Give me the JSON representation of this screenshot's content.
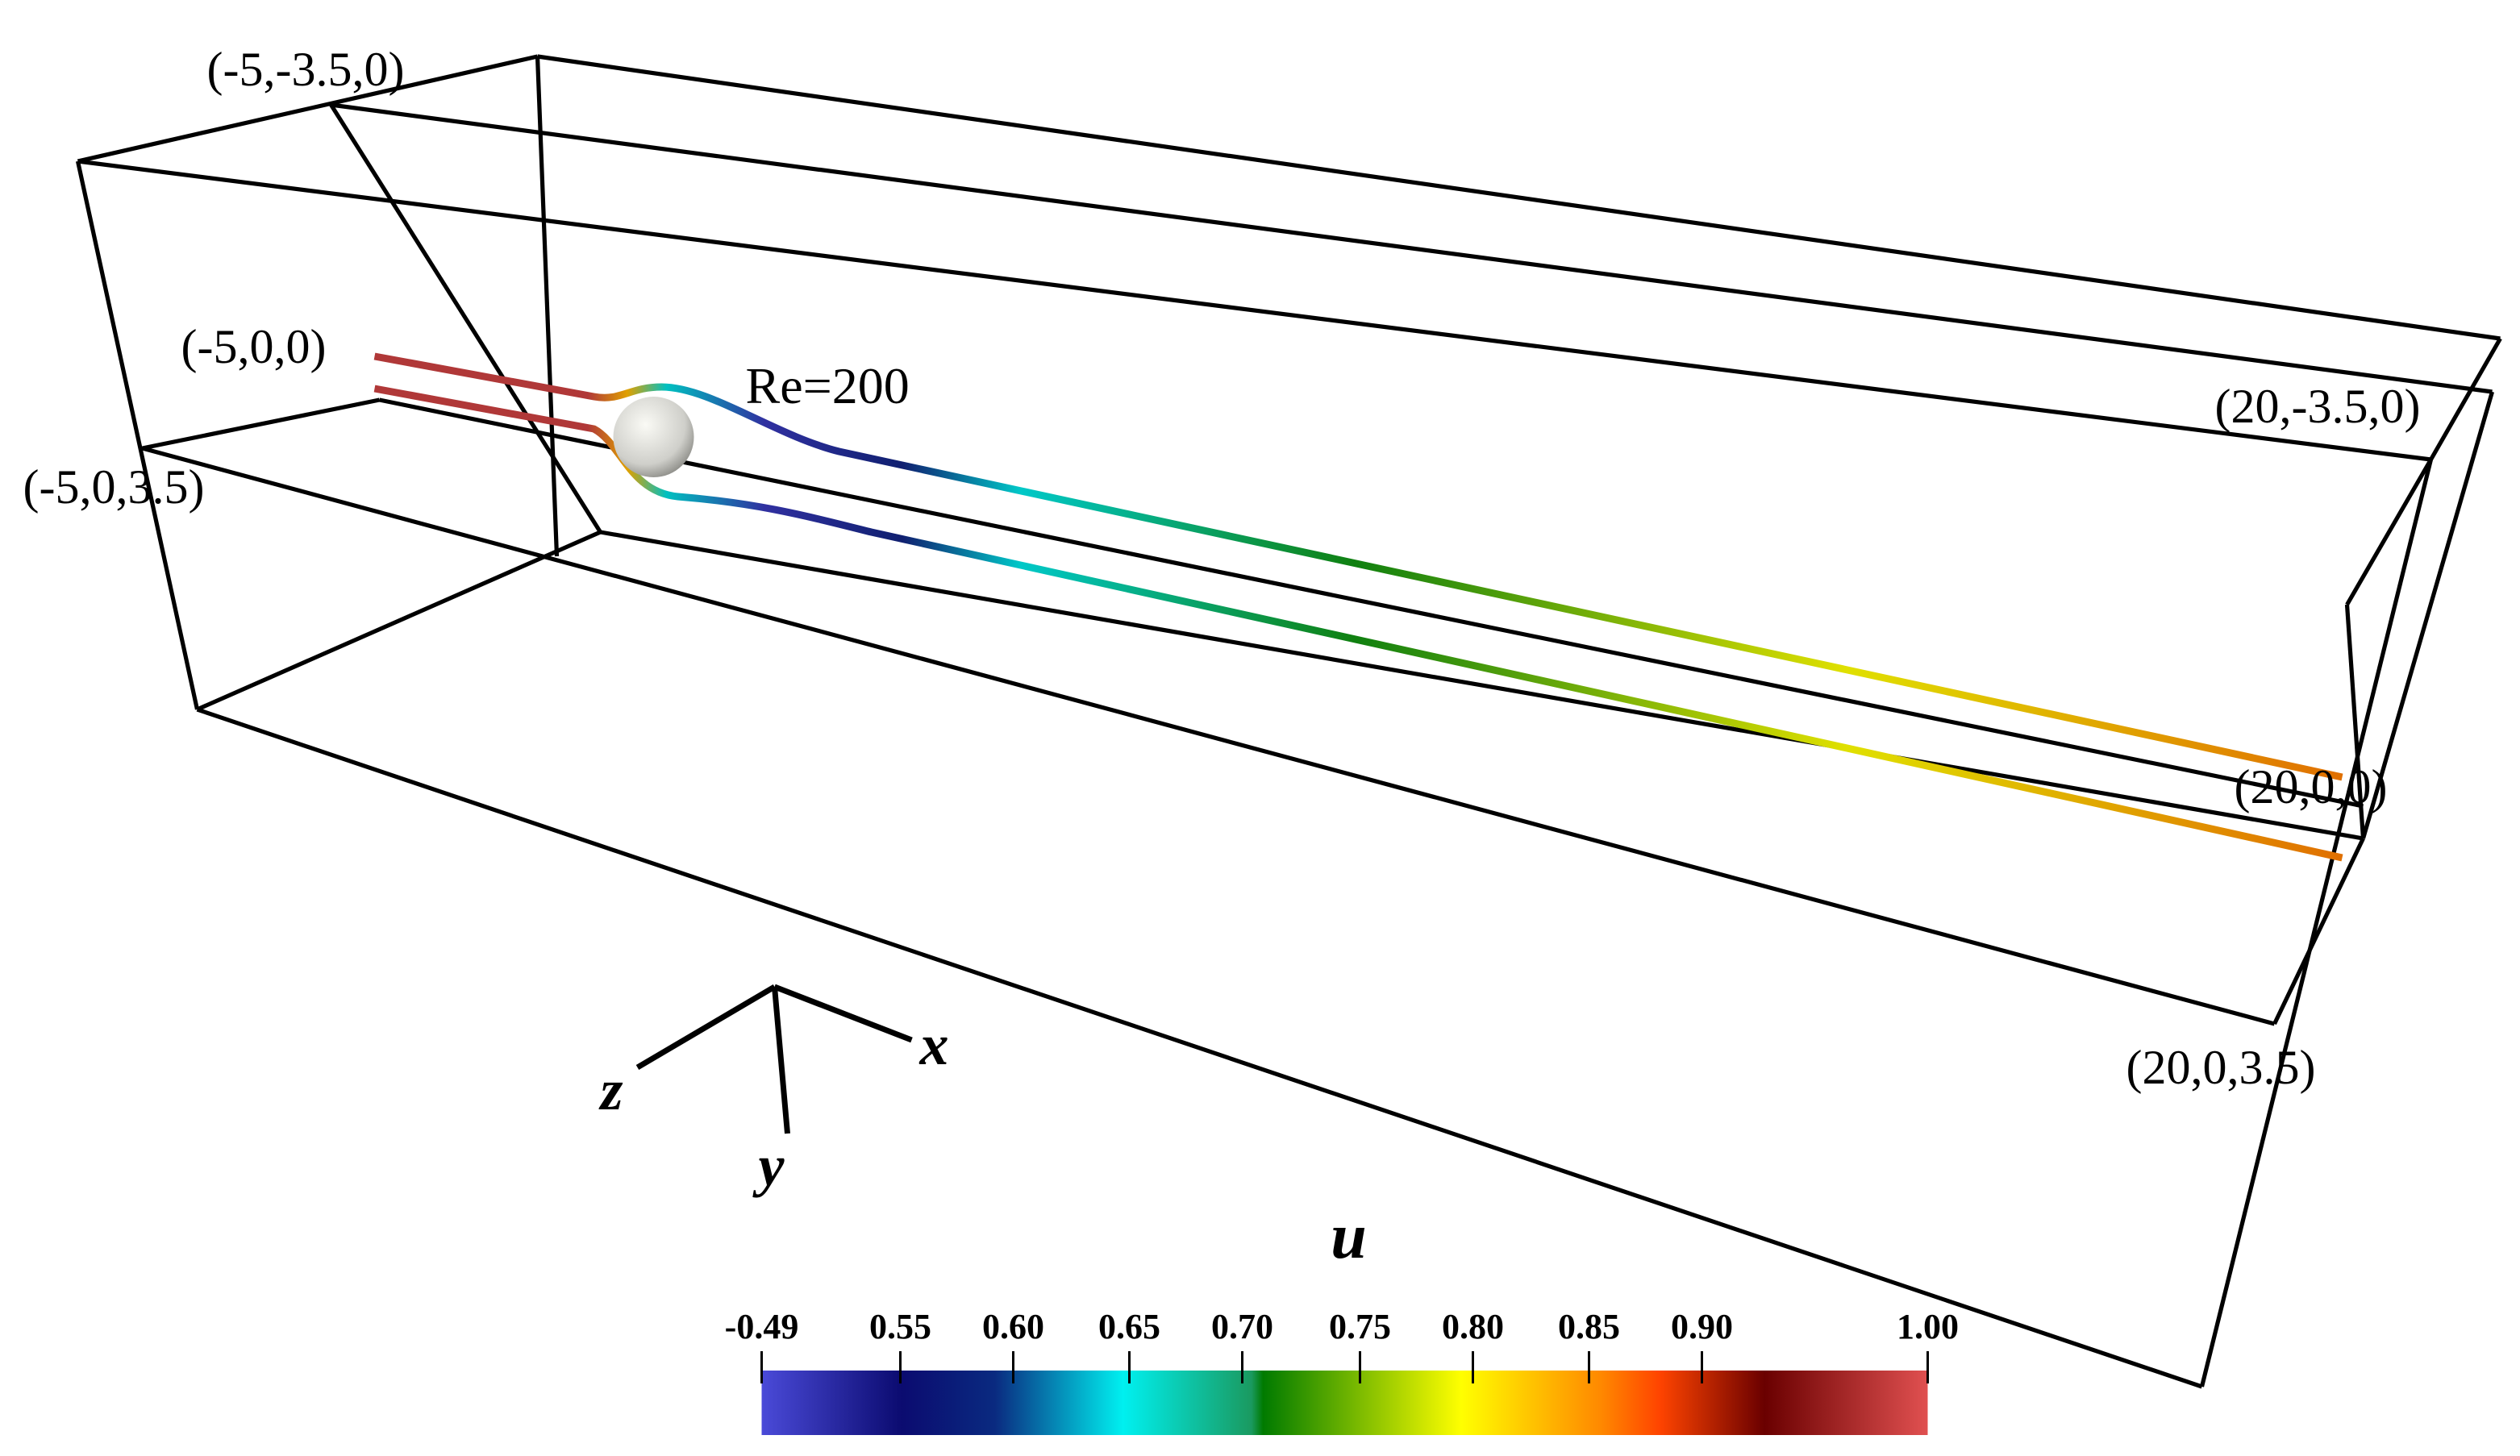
{
  "corner_labels": [
    "(-5,-3.5,0)",
    "(-5,0,0)",
    "(-5,0,3.5)",
    "(20,-3.5,0)",
    "(20,0,0)",
    "(20,0,3.5)"
  ],
  "annotation": "Re=200",
  "axes": {
    "x": "x",
    "y": "y",
    "z": "z"
  },
  "colorbar": {
    "title": "u",
    "ticks": [
      "-0.49",
      "0.55",
      "0.60",
      "0.65",
      "0.70",
      "0.75",
      "0.80",
      "0.85",
      "0.90",
      "1.00"
    ]
  }
}
